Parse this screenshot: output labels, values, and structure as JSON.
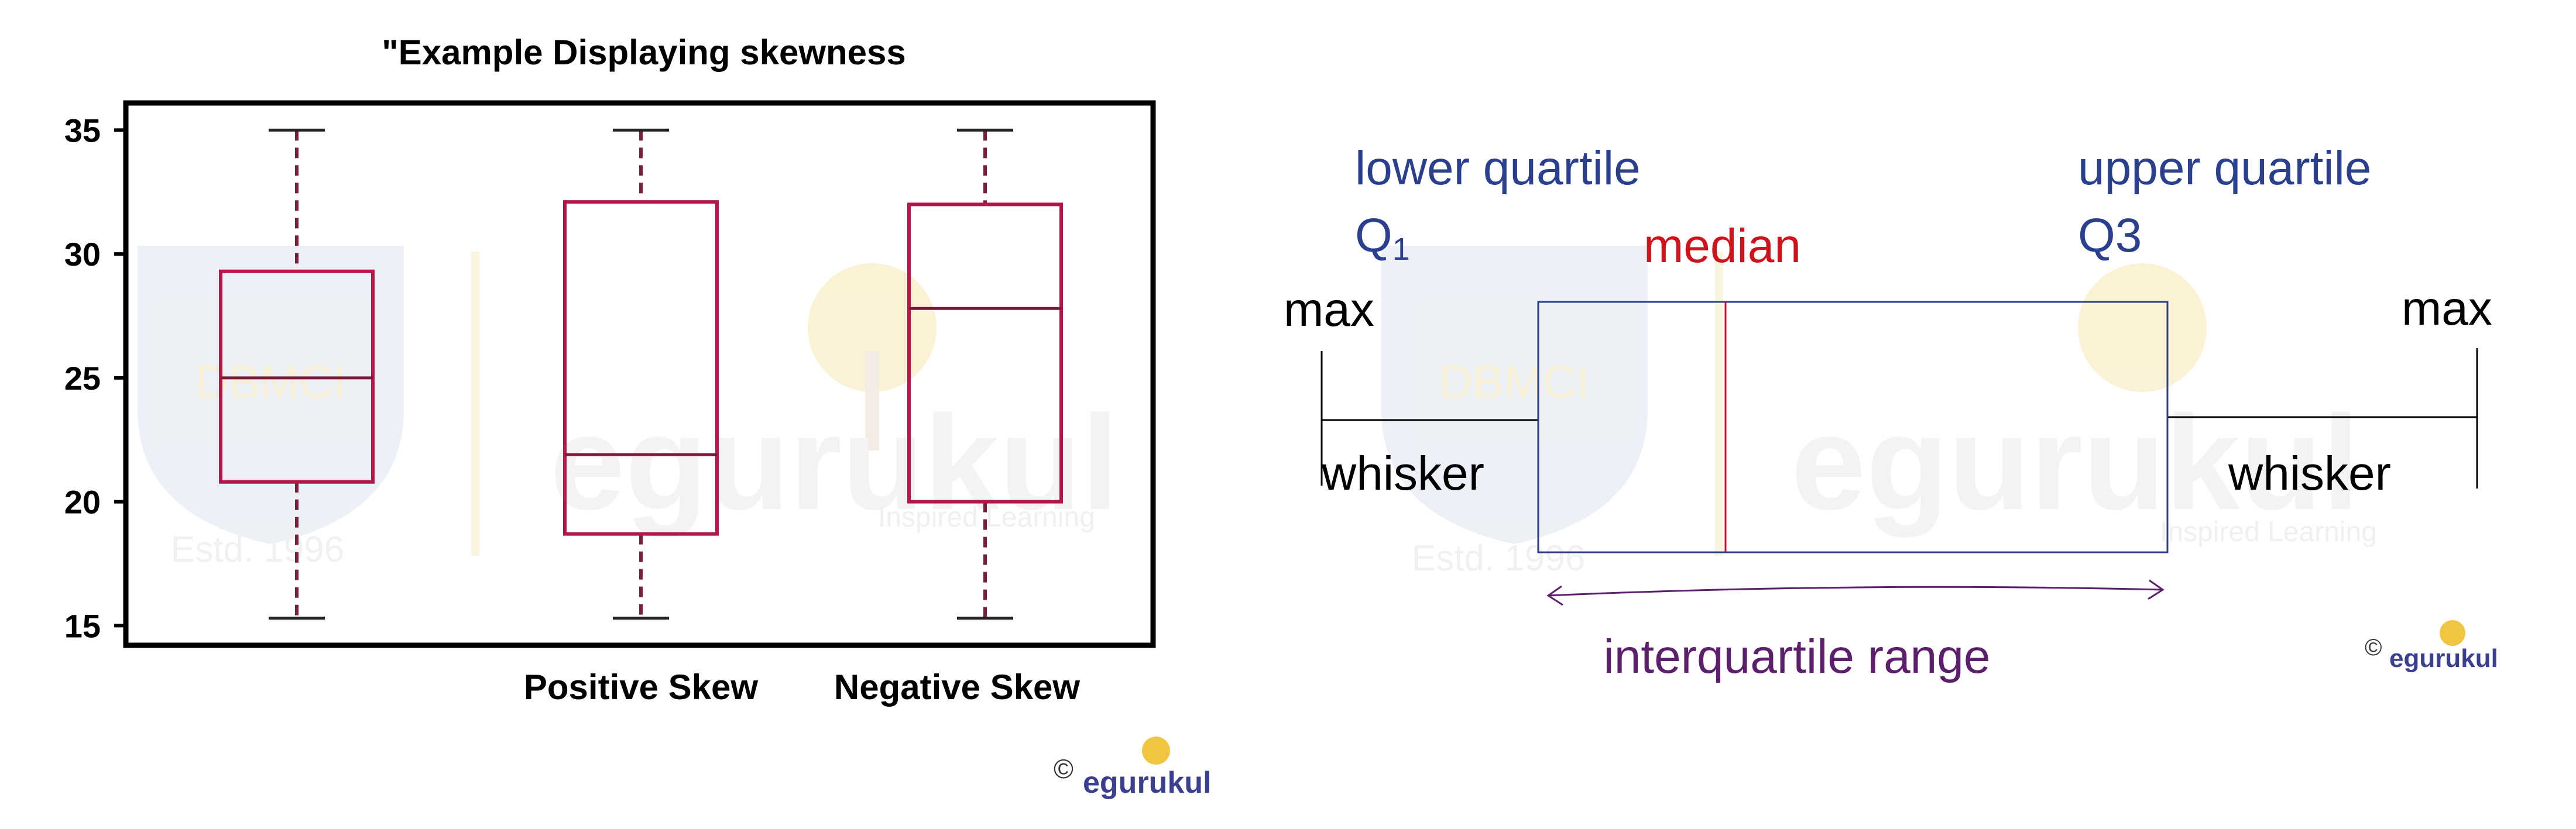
{
  "colors": {
    "box": "#b5174b",
    "median": "#7a1a3a",
    "whisker": "#7a1f3a",
    "cap": "#222222",
    "axis": "#000000",
    "quartile_text": "#2b3f8f",
    "median_text": "#d0121b",
    "iqr_text": "#5b1f6b",
    "diagram_box": "#2b3f8f",
    "diagram_median": "#c8102e",
    "iqr_arrow": "#5b1f6b",
    "watermark": "#dfe4ee",
    "watermark_gold": "#f4e2a8"
  },
  "chart_data": {
    "type": "box",
    "title": "\"Example Displaying skewness",
    "categories": [
      "",
      "Positive Skew",
      "Negative Skew"
    ],
    "boxes": [
      {
        "label": "",
        "whislo": 15.3,
        "q1": 20.8,
        "med": 25.0,
        "q3": 29.3,
        "whishi": 35.0
      },
      {
        "label": "Positive Skew",
        "whislo": 15.3,
        "q1": 18.7,
        "med": 21.9,
        "q3": 32.1,
        "whishi": 35.0
      },
      {
        "label": "Negative Skew",
        "whislo": 15.3,
        "q1": 20.0,
        "med": 27.8,
        "q3": 32.0,
        "whishi": 35.0
      }
    ],
    "yticks": [
      15,
      20,
      25,
      30,
      35
    ],
    "ylim": [
      14.3,
      36.0
    ],
    "grid": false
  },
  "diagram": {
    "lower_quartile": "lower quartile",
    "q1": "Q",
    "q1_sub": "1",
    "median": "median",
    "upper_quartile": "upper quartile",
    "q3": "Q3",
    "max_left": "max",
    "max_right": "max",
    "whisker_left": "whisker",
    "whisker_right": "whisker",
    "iqr": "interquartile range"
  },
  "watermark": {
    "dbmci": "DBMCI",
    "estd": "Estd. 1996",
    "brand": "egurukul",
    "tagline": "Inspired Learning"
  },
  "copyright": {
    "symbol": "©",
    "brand": "egurukul"
  }
}
